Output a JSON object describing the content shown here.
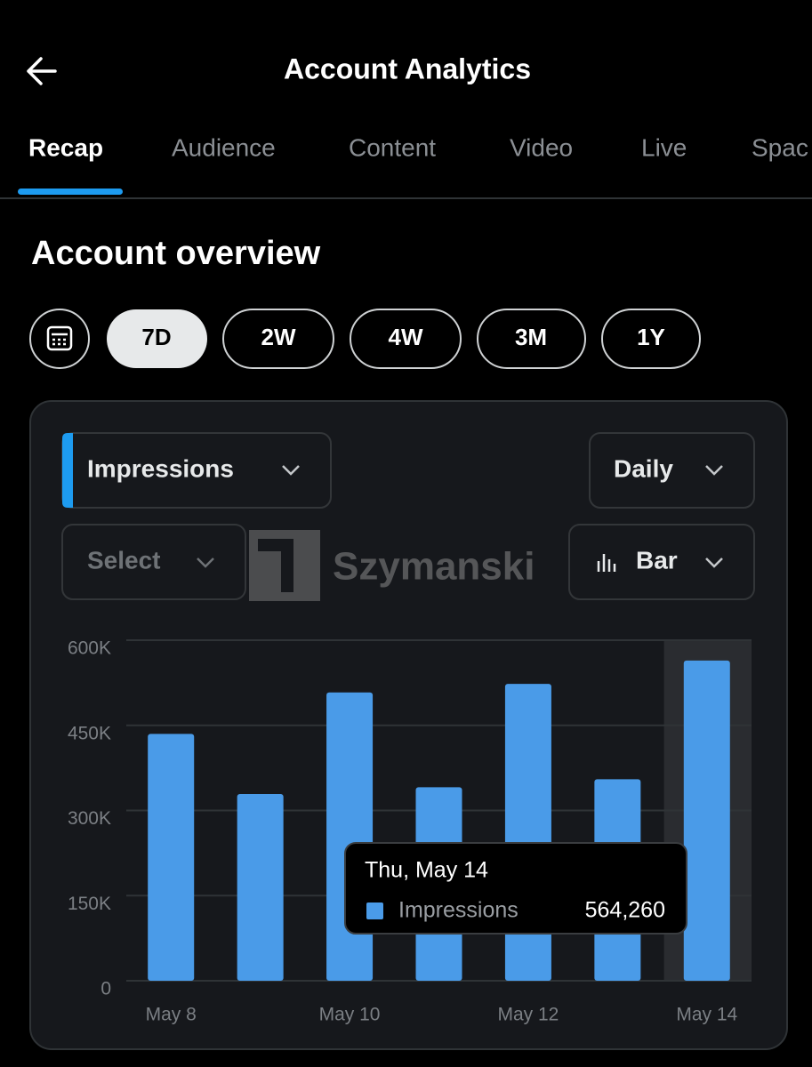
{
  "header": {
    "title": "Account Analytics"
  },
  "tabs": [
    "Recap",
    "Audience",
    "Content",
    "Video",
    "Live",
    "Spac"
  ],
  "section_title": "Account overview",
  "ranges": [
    "7D",
    "2W",
    "4W",
    "3M",
    "1Y"
  ],
  "controls": {
    "interval": "Daily",
    "compare": "Select",
    "chart_style": "Bar"
  },
  "watermark": "Szymanski",
  "chart_data": {
    "type": "bar",
    "categories": [
      "May 8",
      null,
      "May 10",
      null,
      "May 12",
      null,
      "May 14"
    ],
    "series": [
      {
        "name": "Impressions",
        "color": "#4a9be8",
        "values": [
          435000,
          329000,
          508000,
          341000,
          523000,
          355000,
          564260
        ],
        "value_labels": [
          null,
          null,
          null,
          null,
          null,
          null,
          "564,260"
        ]
      }
    ],
    "tooltip": "Thu, May 14",
    "ylim": [
      0,
      600000
    ],
    "yticks": [
      0,
      {
        "value": 150000,
        "label": "150K"
      },
      {
        "value": 300000,
        "label": "300K"
      },
      {
        "value": 450000,
        "label": "450K"
      },
      {
        "value": 600000,
        "label": "600K"
      }
    ],
    "grid": true
  }
}
